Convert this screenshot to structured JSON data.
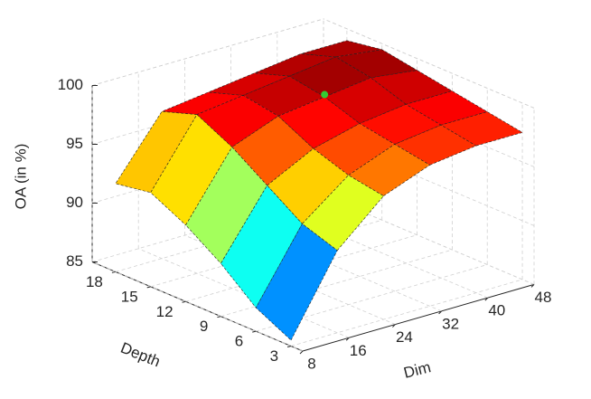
{
  "chart_data": {
    "type": "surface3d",
    "zlabel": "OA (in %)",
    "xlabel": "Dim",
    "ylabel": "Depth",
    "x": [
      8,
      16,
      24,
      32,
      40,
      48
    ],
    "y": [
      3,
      6,
      9,
      12,
      15,
      18
    ],
    "z": [
      [
        85.5,
        92,
        95.5,
        97,
        97.5,
        97.5
      ],
      [
        87,
        93,
        96,
        97.5,
        98,
        98
      ],
      [
        89.5,
        95,
        97,
        98,
        98.5,
        98.5
      ],
      [
        91.5,
        97,
        98.5,
        99,
        99.5,
        99
      ],
      [
        93,
        98.5,
        99,
        99.5,
        100,
        99.5
      ],
      [
        92.5,
        97.5,
        98,
        98.5,
        99,
        99
      ]
    ],
    "colormap": "jet",
    "marker": {
      "x": 32,
      "y": 12,
      "z": 99.2,
      "color": "#33cc33"
    },
    "xlim": [
      8,
      48
    ],
    "xticks": [
      8,
      16,
      24,
      32,
      40,
      48
    ],
    "ylim": [
      2,
      20
    ],
    "yticks": [
      3,
      6,
      9,
      12,
      15,
      18
    ],
    "zlim": [
      85,
      100
    ],
    "zticks": [
      85,
      90,
      95,
      100
    ],
    "grid": true
  }
}
